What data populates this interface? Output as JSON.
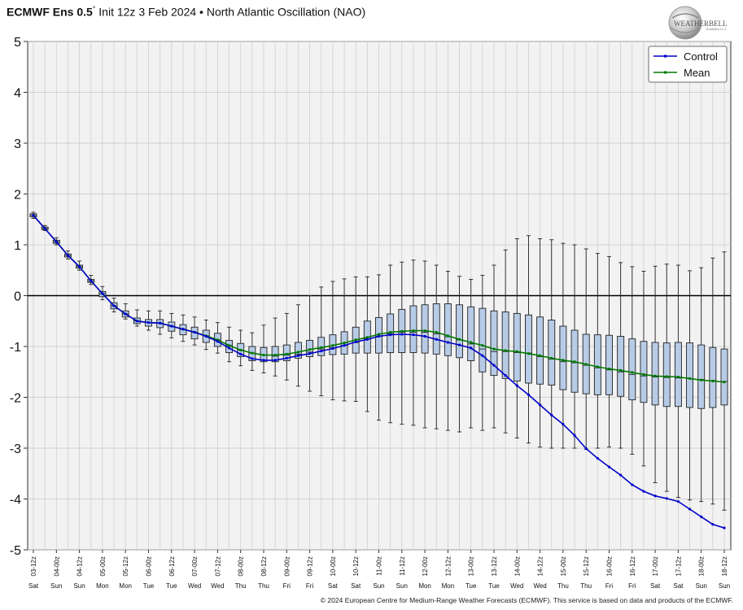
{
  "header": {
    "brand": "ECMWF Ens 0.5",
    "degree_symbol": "°",
    "subtitle": "Init 12z 3 Feb 2024 • North Atlantic Oscillation (NAO)"
  },
  "logo": {
    "text": "WEATHERBELL",
    "small_text": "Analytics LLC"
  },
  "credit": "© 2024 European Centre for Medium-Range Weather Forecasts (ECMWF). This service is based on data and products of the ECMWF.",
  "chart_data": {
    "type": "box",
    "ylim": [
      -5,
      5
    ],
    "yticks": [
      "5",
      "4",
      "3",
      "2",
      "1",
      "0",
      "-1",
      "-2",
      "-3",
      "-4",
      "-5"
    ],
    "ytick_values": [
      5,
      4,
      3,
      2,
      1,
      0,
      -1,
      -2,
      -3,
      -4,
      -5
    ],
    "grid": true,
    "legend_position": "top-right",
    "legend": [
      "Control",
      "Mean"
    ],
    "x_times": [
      "03-12z",
      "04-00z",
      "04-12z",
      "05-00z",
      "05-12z",
      "06-00z",
      "06-12z",
      "07-00z",
      "07-12z",
      "08-00z",
      "08-12z",
      "09-00z",
      "09-12z",
      "10-00z",
      "10-12z",
      "11-00z",
      "11-12z",
      "12-00z",
      "12-12z",
      "13-00z",
      "13-12z",
      "14-00z",
      "14-12z",
      "15-00z",
      "15-12z",
      "16-00z",
      "16-12z",
      "17-00z",
      "17-12z",
      "18-00z",
      "18-12z"
    ],
    "x_days": [
      "Sat",
      "Sun",
      "Sun",
      "Mon",
      "Mon",
      "Tue",
      "Tue",
      "Wed",
      "Wed",
      "Thu",
      "Thu",
      "Fri",
      "Fri",
      "Sat",
      "Sat",
      "Sun",
      "Sun",
      "Mon",
      "Mon",
      "Tue",
      "Tue",
      "Wed",
      "Wed",
      "Thu",
      "Thu",
      "Fri",
      "Fri",
      "Sat",
      "Sat",
      "Sun",
      "Sun"
    ],
    "series": [
      {
        "name": "Control",
        "color": "#0000cc",
        "values": [
          1.58,
          1.32,
          1.06,
          0.79,
          0.57,
          0.29,
          0.04,
          -0.2,
          -0.36,
          -0.5,
          -0.53,
          -0.54,
          -0.6,
          -0.66,
          -0.72,
          -0.8,
          -0.9,
          -1.03,
          -1.15,
          -1.24,
          -1.27,
          -1.27,
          -1.23,
          -1.18,
          -1.14,
          -1.09,
          -1.04,
          -0.98,
          -0.91,
          -0.86,
          -0.8,
          -0.77,
          -0.76,
          -0.77,
          -0.8,
          -0.86,
          -0.92,
          -0.97,
          -1.03,
          -1.18,
          -1.37,
          -1.57,
          -1.77,
          -1.95,
          -2.15,
          -2.35,
          -2.53,
          -2.75,
          -3.01,
          -3.2,
          -3.37,
          -3.53,
          -3.72,
          -3.85,
          -3.94,
          -3.99,
          -4.05,
          -4.2,
          -4.35,
          -4.5,
          -4.57
        ]
      },
      {
        "name": "Mean",
        "color": "#007a00",
        "values": [
          1.58,
          1.32,
          1.06,
          0.79,
          0.57,
          0.29,
          0.04,
          -0.2,
          -0.36,
          -0.5,
          -0.53,
          -0.54,
          -0.6,
          -0.66,
          -0.72,
          -0.79,
          -0.87,
          -0.98,
          -1.07,
          -1.13,
          -1.17,
          -1.17,
          -1.15,
          -1.11,
          -1.06,
          -1.02,
          -0.98,
          -0.93,
          -0.87,
          -0.82,
          -0.76,
          -0.72,
          -0.7,
          -0.69,
          -0.69,
          -0.72,
          -0.79,
          -0.86,
          -0.92,
          -0.98,
          -1.05,
          -1.08,
          -1.1,
          -1.14,
          -1.18,
          -1.23,
          -1.27,
          -1.3,
          -1.35,
          -1.4,
          -1.44,
          -1.47,
          -1.51,
          -1.55,
          -1.58,
          -1.59,
          -1.6,
          -1.63,
          -1.66,
          -1.68,
          -1.7
        ]
      }
    ],
    "boxes": {
      "min": [
        1.52,
        1.28,
        1.0,
        0.72,
        0.5,
        0.22,
        -0.08,
        -0.32,
        -0.46,
        -0.6,
        -0.68,
        -0.76,
        -0.83,
        -0.9,
        -0.97,
        -1.06,
        -1.13,
        -1.3,
        -1.38,
        -1.47,
        -1.52,
        -1.58,
        -1.66,
        -1.78,
        -1.88,
        -1.97,
        -2.05,
        -2.07,
        -2.08,
        -2.28,
        -2.45,
        -2.5,
        -2.53,
        -2.55,
        -2.6,
        -2.62,
        -2.65,
        -2.68,
        -2.6,
        -2.65,
        -2.6,
        -2.7,
        -2.8,
        -2.9,
        -2.98,
        -3.0,
        -3.0,
        -3.0,
        -3.02,
        -3.0,
        -2.98,
        -3.0,
        -3.12,
        -3.35,
        -3.68,
        -3.85,
        -3.97,
        -4.02,
        -4.05,
        -4.1,
        -4.22
      ],
      "q1": [
        1.55,
        1.3,
        1.03,
        0.76,
        0.54,
        0.26,
        -0.02,
        -0.26,
        -0.42,
        -0.55,
        -0.6,
        -0.63,
        -0.7,
        -0.77,
        -0.85,
        -0.92,
        -1.0,
        -1.12,
        -1.2,
        -1.28,
        -1.3,
        -1.3,
        -1.28,
        -1.23,
        -1.2,
        -1.18,
        -1.16,
        -1.15,
        -1.13,
        -1.13,
        -1.13,
        -1.12,
        -1.12,
        -1.12,
        -1.13,
        -1.15,
        -1.18,
        -1.22,
        -1.28,
        -1.5,
        -1.57,
        -1.63,
        -1.68,
        -1.72,
        -1.74,
        -1.76,
        -1.85,
        -1.9,
        -1.93,
        -1.95,
        -1.95,
        -1.98,
        -2.05,
        -2.1,
        -2.15,
        -2.18,
        -2.18,
        -2.2,
        -2.22,
        -2.2,
        -2.15
      ],
      "median": [
        1.58,
        1.32,
        1.06,
        0.79,
        0.57,
        0.29,
        0.04,
        -0.2,
        -0.36,
        -0.5,
        -0.53,
        -0.54,
        -0.6,
        -0.66,
        -0.72,
        -0.79,
        -0.87,
        -0.98,
        -1.07,
        -1.13,
        -1.17,
        -1.19,
        -1.17,
        -1.15,
        -1.11,
        -1.05,
        -1.02,
        -0.98,
        -0.92,
        -0.85,
        -0.8,
        -0.75,
        -0.72,
        -0.72,
        -0.72,
        -0.75,
        -0.81,
        -0.87,
        -0.95,
        -1.05,
        -1.1,
        -1.1,
        -1.12,
        -1.13,
        -1.2,
        -1.25,
        -1.3,
        -1.32,
        -1.37,
        -1.42,
        -1.46,
        -1.5,
        -1.55,
        -1.58,
        -1.6,
        -1.61,
        -1.62,
        -1.63,
        -1.65,
        -1.67,
        -1.69
      ],
      "q3": [
        1.61,
        1.35,
        1.09,
        0.82,
        0.6,
        0.32,
        0.08,
        -0.14,
        -0.3,
        -0.44,
        -0.47,
        -0.47,
        -0.52,
        -0.57,
        -0.62,
        -0.68,
        -0.74,
        -0.88,
        -0.94,
        -1.0,
        -1.02,
        -1.0,
        -0.97,
        -0.92,
        -0.88,
        -0.82,
        -0.77,
        -0.71,
        -0.62,
        -0.5,
        -0.43,
        -0.36,
        -0.27,
        -0.2,
        -0.18,
        -0.16,
        -0.16,
        -0.18,
        -0.22,
        -0.25,
        -0.3,
        -0.32,
        -0.35,
        -0.38,
        -0.42,
        -0.48,
        -0.6,
        -0.68,
        -0.76,
        -0.77,
        -0.78,
        -0.8,
        -0.85,
        -0.9,
        -0.92,
        -0.93,
        -0.92,
        -0.93,
        -0.97,
        -1.02,
        -1.05
      ],
      "max": [
        1.64,
        1.38,
        1.14,
        0.88,
        0.68,
        0.4,
        0.18,
        -0.05,
        -0.16,
        -0.28,
        -0.3,
        -0.3,
        -0.35,
        -0.38,
        -0.42,
        -0.48,
        -0.53,
        -0.62,
        -0.68,
        -0.73,
        -0.58,
        -0.44,
        -0.35,
        -0.18,
        0.0,
        0.17,
        0.28,
        0.33,
        0.37,
        0.37,
        0.41,
        0.6,
        0.66,
        0.7,
        0.68,
        0.6,
        0.48,
        0.38,
        0.32,
        0.4,
        0.6,
        0.9,
        1.12,
        1.18,
        1.12,
        1.1,
        1.03,
        1.0,
        0.92,
        0.83,
        0.77,
        0.65,
        0.57,
        0.48,
        0.58,
        0.62,
        0.6,
        0.49,
        0.55,
        0.74,
        0.86
      ]
    }
  }
}
